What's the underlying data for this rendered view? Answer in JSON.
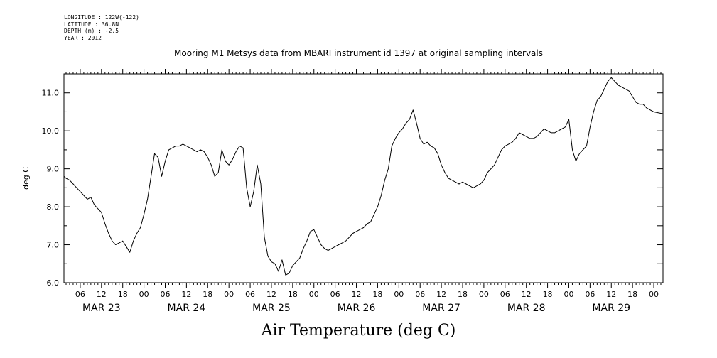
{
  "header": {
    "longitude": "LONGITUDE : 122W(-122)",
    "latitude": "LATITUDE : 36.8N",
    "depth": "DEPTH (m) : -2.5",
    "year": "YEAR : 2012"
  },
  "chart_data": {
    "type": "line",
    "title": "Mooring M1 Metsys data from MBARI instrument id 1397 at original sampling intervals",
    "xlabel": "Air Temperature (deg C)",
    "ylabel": "deg C",
    "ylim": [
      6.0,
      11.5
    ],
    "y_ticks": [
      "6.0",
      "7.0",
      "8.0",
      "9.0",
      "10.0",
      "11.0"
    ],
    "x_hour_ticks": [
      "06",
      "12",
      "18",
      "00",
      "06",
      "12",
      "18",
      "00",
      "06",
      "12",
      "18",
      "00",
      "06",
      "12",
      "18",
      "00",
      "06",
      "12",
      "18",
      "00",
      "06",
      "12",
      "18",
      "00",
      "06",
      "12",
      "18",
      "00"
    ],
    "x_day_labels": [
      "MAR 23",
      "MAR 24",
      "MAR 25",
      "MAR 26",
      "MAR 27",
      "MAR 28",
      "MAR 29"
    ],
    "x_unit": "hours since MAR 23 00:00",
    "xlim": [
      1.4,
      170.6
    ],
    "series": [
      {
        "color": "#000000",
        "points": [
          [
            1.4,
            8.8
          ],
          [
            2,
            8.75
          ],
          [
            3,
            8.7
          ],
          [
            4,
            8.6
          ],
          [
            5,
            8.5
          ],
          [
            6,
            8.4
          ],
          [
            7,
            8.3
          ],
          [
            8,
            8.2
          ],
          [
            9,
            8.25
          ],
          [
            10,
            8.05
          ],
          [
            11,
            7.95
          ],
          [
            12,
            7.85
          ],
          [
            13,
            7.55
          ],
          [
            14,
            7.3
          ],
          [
            15,
            7.1
          ],
          [
            16,
            7.0
          ],
          [
            17,
            7.05
          ],
          [
            18,
            7.1
          ],
          [
            19,
            6.95
          ],
          [
            20,
            6.8
          ],
          [
            21,
            7.1
          ],
          [
            22,
            7.3
          ],
          [
            23,
            7.45
          ],
          [
            24,
            7.8
          ],
          [
            25,
            8.2
          ],
          [
            26,
            8.8
          ],
          [
            27,
            9.4
          ],
          [
            28,
            9.3
          ],
          [
            29,
            8.8
          ],
          [
            30,
            9.2
          ],
          [
            31,
            9.5
          ],
          [
            32,
            9.55
          ],
          [
            33,
            9.6
          ],
          [
            34,
            9.6
          ],
          [
            35,
            9.65
          ],
          [
            36,
            9.6
          ],
          [
            37,
            9.55
          ],
          [
            38,
            9.5
          ],
          [
            39,
            9.45
          ],
          [
            40,
            9.5
          ],
          [
            41,
            9.45
          ],
          [
            42,
            9.3
          ],
          [
            43,
            9.1
          ],
          [
            44,
            8.8
          ],
          [
            45,
            8.9
          ],
          [
            46,
            9.5
          ],
          [
            47,
            9.2
          ],
          [
            48,
            9.1
          ],
          [
            49,
            9.25
          ],
          [
            50,
            9.45
          ],
          [
            51,
            9.6
          ],
          [
            52,
            9.55
          ],
          [
            53,
            8.5
          ],
          [
            54,
            8.0
          ],
          [
            55,
            8.4
          ],
          [
            56,
            9.1
          ],
          [
            57,
            8.6
          ],
          [
            58,
            7.2
          ],
          [
            59,
            6.7
          ],
          [
            60,
            6.55
          ],
          [
            61,
            6.5
          ],
          [
            62,
            6.3
          ],
          [
            63,
            6.6
          ],
          [
            64,
            6.2
          ],
          [
            65,
            6.25
          ],
          [
            66,
            6.45
          ],
          [
            67,
            6.55
          ],
          [
            68,
            6.65
          ],
          [
            69,
            6.9
          ],
          [
            70,
            7.1
          ],
          [
            71,
            7.35
          ],
          [
            72,
            7.4
          ],
          [
            73,
            7.2
          ],
          [
            74,
            7.0
          ],
          [
            75,
            6.9
          ],
          [
            76,
            6.85
          ],
          [
            77,
            6.9
          ],
          [
            78,
            6.95
          ],
          [
            79,
            7.0
          ],
          [
            80,
            7.05
          ],
          [
            81,
            7.1
          ],
          [
            82,
            7.2
          ],
          [
            83,
            7.3
          ],
          [
            84,
            7.35
          ],
          [
            85,
            7.4
          ],
          [
            86,
            7.45
          ],
          [
            87,
            7.55
          ],
          [
            88,
            7.6
          ],
          [
            89,
            7.8
          ],
          [
            90,
            8.0
          ],
          [
            91,
            8.3
          ],
          [
            92,
            8.7
          ],
          [
            93,
            9.0
          ],
          [
            94,
            9.6
          ],
          [
            95,
            9.8
          ],
          [
            96,
            9.95
          ],
          [
            97,
            10.05
          ],
          [
            98,
            10.2
          ],
          [
            99,
            10.3
          ],
          [
            100,
            10.55
          ],
          [
            101,
            10.2
          ],
          [
            102,
            9.8
          ],
          [
            103,
            9.65
          ],
          [
            104,
            9.7
          ],
          [
            105,
            9.6
          ],
          [
            106,
            9.55
          ],
          [
            107,
            9.4
          ],
          [
            108,
            9.1
          ],
          [
            109,
            8.9
          ],
          [
            110,
            8.75
          ],
          [
            111,
            8.7
          ],
          [
            112,
            8.65
          ],
          [
            113,
            8.6
          ],
          [
            114,
            8.65
          ],
          [
            115,
            8.6
          ],
          [
            116,
            8.55
          ],
          [
            117,
            8.5
          ],
          [
            118,
            8.55
          ],
          [
            119,
            8.6
          ],
          [
            120,
            8.7
          ],
          [
            121,
            8.9
          ],
          [
            122,
            9.0
          ],
          [
            123,
            9.1
          ],
          [
            124,
            9.3
          ],
          [
            125,
            9.5
          ],
          [
            126,
            9.6
          ],
          [
            127,
            9.65
          ],
          [
            128,
            9.7
          ],
          [
            129,
            9.8
          ],
          [
            130,
            9.95
          ],
          [
            131,
            9.9
          ],
          [
            132,
            9.85
          ],
          [
            133,
            9.8
          ],
          [
            134,
            9.8
          ],
          [
            135,
            9.85
          ],
          [
            136,
            9.95
          ],
          [
            137,
            10.05
          ],
          [
            138,
            10.0
          ],
          [
            139,
            9.95
          ],
          [
            140,
            9.95
          ],
          [
            141,
            10.0
          ],
          [
            142,
            10.05
          ],
          [
            143,
            10.1
          ],
          [
            144,
            10.3
          ],
          [
            145,
            9.5
          ],
          [
            146,
            9.2
          ],
          [
            147,
            9.4
          ],
          [
            148,
            9.5
          ],
          [
            149,
            9.6
          ],
          [
            150,
            10.1
          ],
          [
            151,
            10.5
          ],
          [
            152,
            10.8
          ],
          [
            153,
            10.9
          ],
          [
            154,
            11.1
          ],
          [
            155,
            11.3
          ],
          [
            156,
            11.4
          ],
          [
            157,
            11.3
          ],
          [
            158,
            11.2
          ],
          [
            159,
            11.15
          ],
          [
            160,
            11.1
          ],
          [
            161,
            11.05
          ],
          [
            162,
            10.9
          ],
          [
            163,
            10.75
          ],
          [
            164,
            10.7
          ],
          [
            165,
            10.7
          ],
          [
            166,
            10.6
          ],
          [
            167,
            10.55
          ],
          [
            168,
            10.5
          ],
          [
            170.6,
            10.45
          ]
        ]
      }
    ],
    "grid": false,
    "legend": "none"
  }
}
